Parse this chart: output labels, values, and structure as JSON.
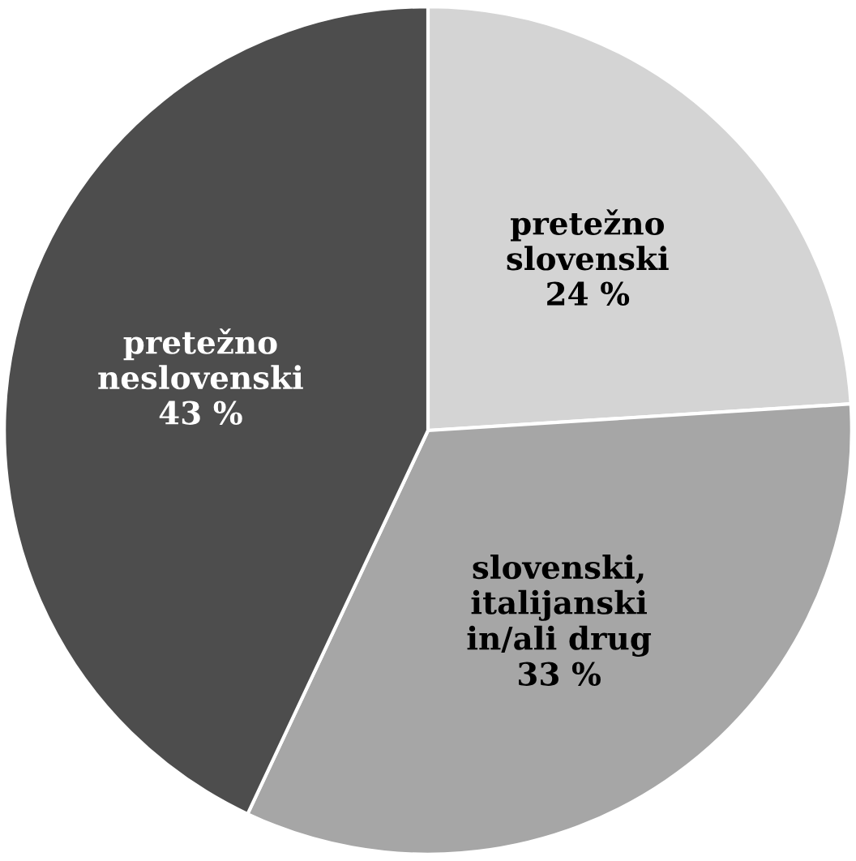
{
  "chart_data": {
    "type": "pie",
    "categories": [
      "pretežno\nslovenski",
      "slovenski,\nitalijanski\nin/ali drug",
      "pretežno\nneslovenski"
    ],
    "values": [
      24,
      33,
      43
    ],
    "value_labels": [
      "24 %",
      "33 %",
      "43 %"
    ],
    "colors": [
      "#d4d4d4",
      "#a6a6a6",
      "#4d4d4d"
    ]
  }
}
